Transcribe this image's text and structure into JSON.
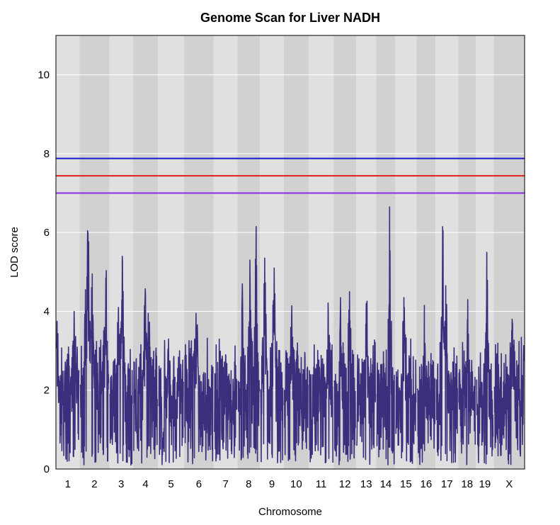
{
  "chart_data": {
    "type": "line",
    "title": "Genome Scan for Liver NADH",
    "xlabel": "Chromosome",
    "ylabel": "LOD score",
    "ylim": [
      0,
      11
    ],
    "y_ticks": [
      0,
      2,
      4,
      6,
      8,
      10
    ],
    "grid": true,
    "chromosomes": [
      "1",
      "2",
      "3",
      "4",
      "5",
      "6",
      "7",
      "8",
      "9",
      "10",
      "11",
      "12",
      "13",
      "14",
      "15",
      "16",
      "17",
      "18",
      "19",
      "X"
    ],
    "chromosome_widths": [
      1.0,
      1.25,
      1.0,
      1.05,
      1.1,
      1.25,
      1.0,
      0.95,
      1.0,
      1.05,
      1.05,
      0.95,
      0.85,
      0.8,
      0.9,
      0.8,
      0.95,
      0.75,
      0.75,
      1.3
    ],
    "thresholds": [
      {
        "value": 7.88,
        "color": "#1a1acc"
      },
      {
        "value": 7.44,
        "color": "#e01e1e"
      },
      {
        "value": 7.0,
        "color": "#8a2be2"
      }
    ],
    "series_color": "#3a2f7c",
    "peaks": [
      {
        "chr": "1",
        "pos": 0.02,
        "lod": 3.75
      },
      {
        "chr": "1",
        "pos": 0.55,
        "lod": 2.9
      },
      {
        "chr": "1",
        "pos": 0.78,
        "lod": 4.0
      },
      {
        "chr": "2",
        "pos": 0.18,
        "lod": 4.55
      },
      {
        "chr": "2",
        "pos": 0.27,
        "lod": 6.0
      },
      {
        "chr": "2",
        "pos": 0.42,
        "lod": 4.95
      },
      {
        "chr": "2",
        "pos": 0.9,
        "lod": 4.85
      },
      {
        "chr": "3",
        "pos": 0.38,
        "lod": 4.1
      },
      {
        "chr": "3",
        "pos": 0.55,
        "lod": 5.4
      },
      {
        "chr": "4",
        "pos": 0.5,
        "lod": 4.4
      },
      {
        "chr": "4",
        "pos": 0.62,
        "lod": 3.95
      },
      {
        "chr": "5",
        "pos": 0.4,
        "lod": 3.3
      },
      {
        "chr": "5",
        "pos": 0.85,
        "lod": 3.0
      },
      {
        "chr": "6",
        "pos": 0.35,
        "lod": 3.3
      },
      {
        "chr": "6",
        "pos": 0.4,
        "lod": 3.95
      },
      {
        "chr": "7",
        "pos": 0.5,
        "lod": 2.9
      },
      {
        "chr": "8",
        "pos": 0.2,
        "lod": 4.7
      },
      {
        "chr": "8",
        "pos": 0.55,
        "lod": 5.3
      },
      {
        "chr": "8",
        "pos": 0.85,
        "lod": 6.15
      },
      {
        "chr": "9",
        "pos": 0.18,
        "lod": 5.35
      },
      {
        "chr": "9",
        "pos": 0.6,
        "lod": 5.1
      },
      {
        "chr": "10",
        "pos": 0.3,
        "lod": 3.85
      },
      {
        "chr": "10",
        "pos": 0.55,
        "lod": 3.2
      },
      {
        "chr": "11",
        "pos": 0.8,
        "lod": 3.95
      },
      {
        "chr": "12",
        "pos": 0.3,
        "lod": 4.35
      },
      {
        "chr": "12",
        "pos": 0.72,
        "lod": 4.5
      },
      {
        "chr": "13",
        "pos": 0.5,
        "lod": 4.2
      },
      {
        "chr": "14",
        "pos": 0.72,
        "lod": 6.65
      },
      {
        "chr": "15",
        "pos": 0.4,
        "lod": 4.35
      },
      {
        "chr": "16",
        "pos": 0.4,
        "lod": 4.15
      },
      {
        "chr": "17",
        "pos": 0.3,
        "lod": 6.15
      },
      {
        "chr": "17",
        "pos": 0.45,
        "lod": 4.65
      },
      {
        "chr": "18",
        "pos": 0.55,
        "lod": 4.3
      },
      {
        "chr": "19",
        "pos": 0.62,
        "lod": 5.5
      },
      {
        "chr": "X",
        "pos": 0.6,
        "lod": 3.8
      }
    ]
  }
}
